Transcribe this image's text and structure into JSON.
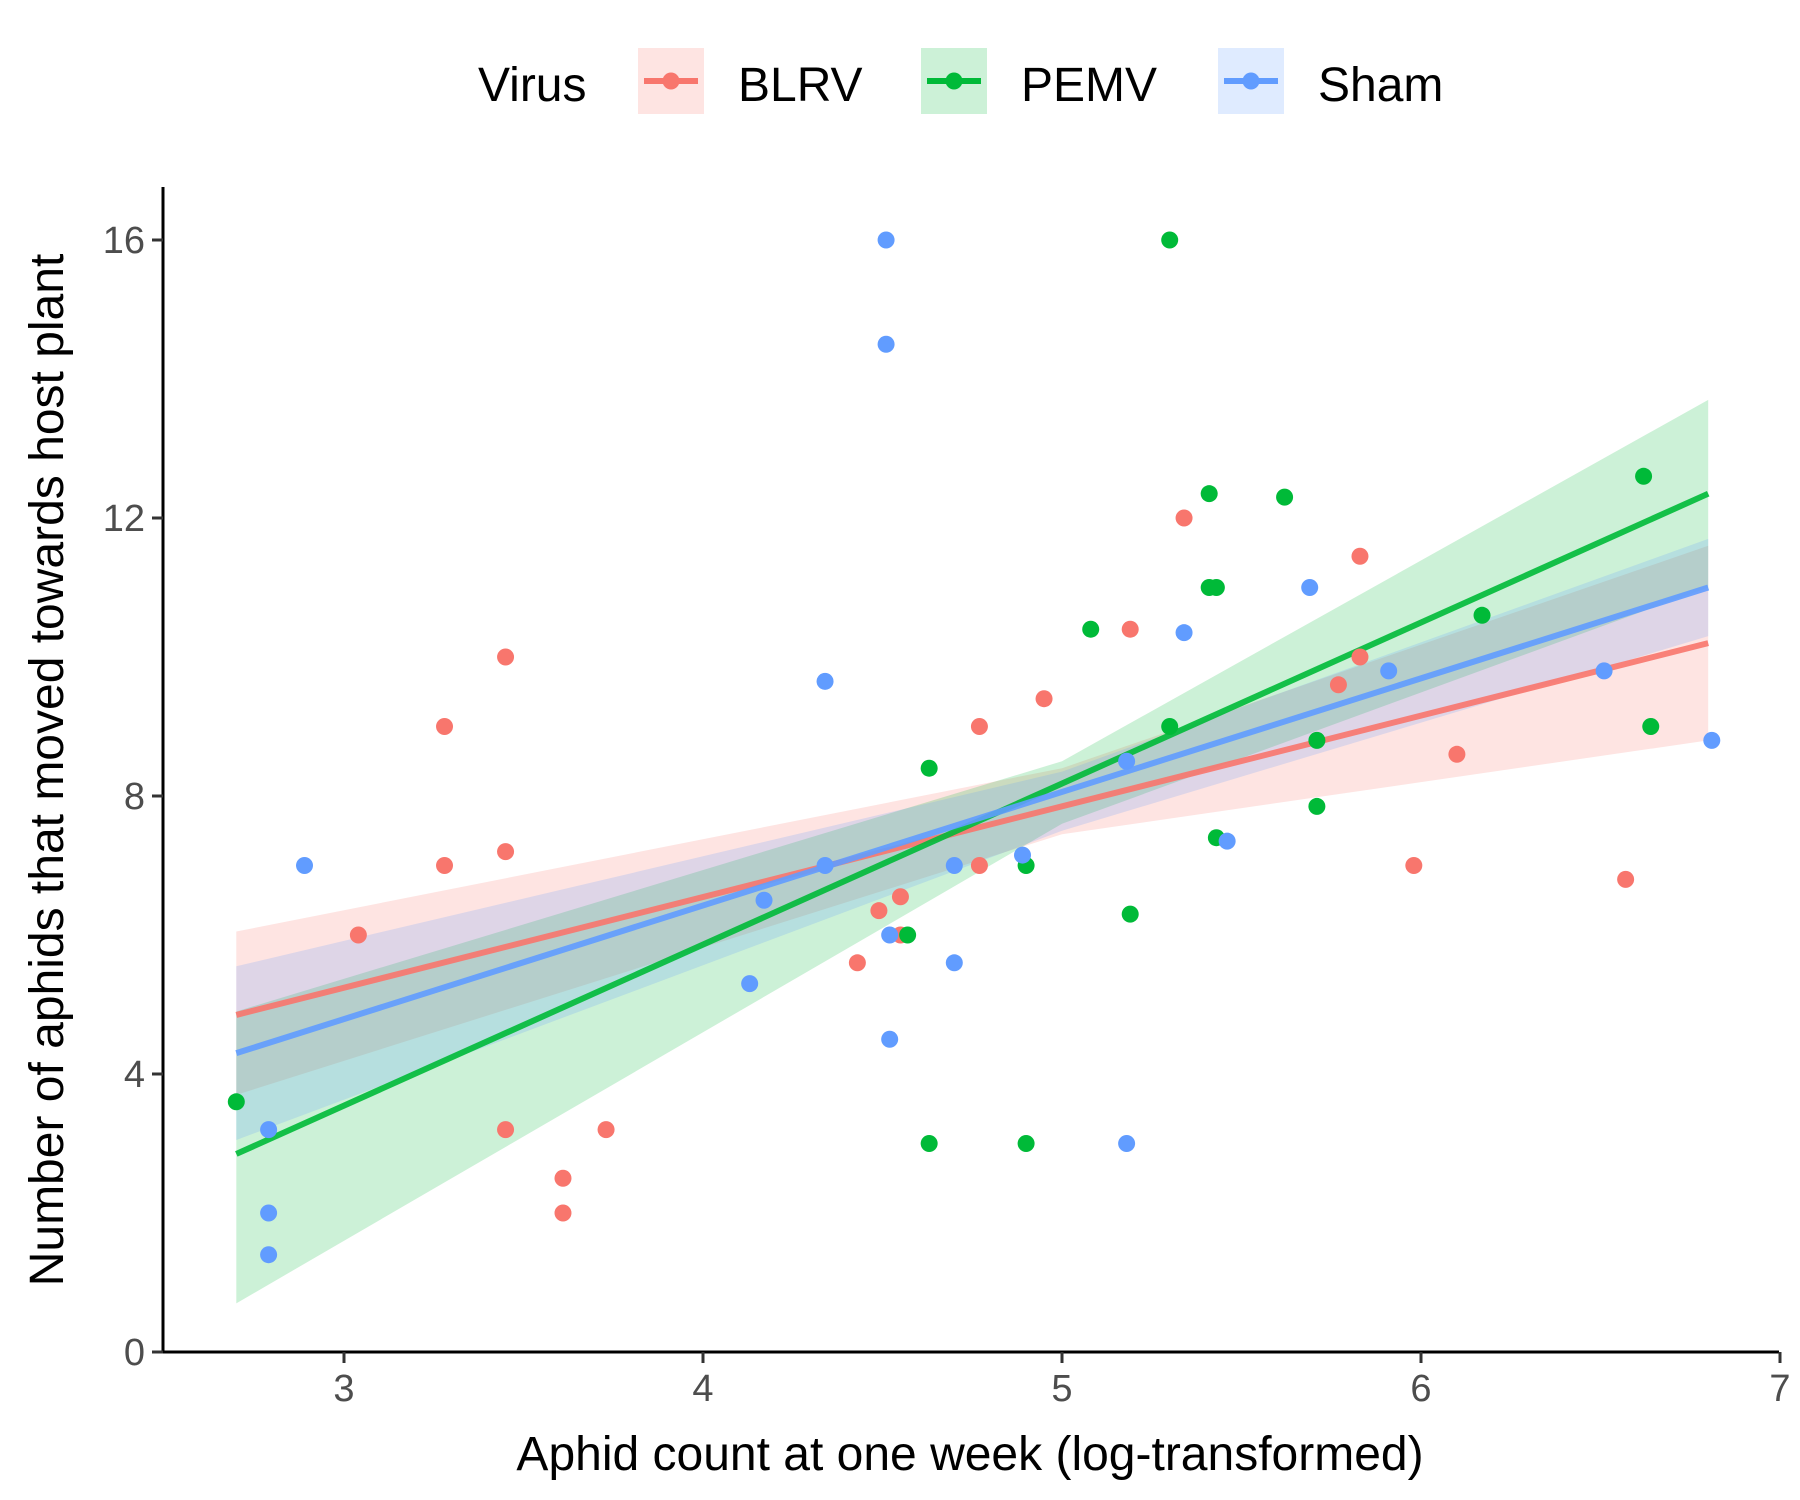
{
  "chart_data": {
    "type": "scatter",
    "xlabel": "Aphid count at one week (log-transformed)",
    "ylabel": "Number of aphids that moved towards host plant",
    "xlim": [
      2.5,
      7
    ],
    "ylim": [
      0,
      16.7
    ],
    "x_ticks": [
      3,
      4,
      5,
      6,
      7
    ],
    "y_ticks": [
      0,
      4,
      8,
      12,
      16
    ],
    "x_tick_labels": [
      "3",
      "4",
      "5",
      "6",
      "7"
    ],
    "y_tick_labels": [
      "0",
      "4",
      "8",
      "12",
      "16"
    ],
    "grid": false,
    "legend": {
      "title": "Virus",
      "position": "top"
    },
    "series": [
      {
        "name": "BLRV",
        "color": "#F8766D",
        "points": [
          [
            3.04,
            6.0
          ],
          [
            3.28,
            9.0
          ],
          [
            3.28,
            7.0
          ],
          [
            3.45,
            10.0
          ],
          [
            3.45,
            7.2
          ],
          [
            3.45,
            3.2
          ],
          [
            3.61,
            2.5
          ],
          [
            3.61,
            2.0
          ],
          [
            3.73,
            3.2
          ],
          [
            4.43,
            5.6
          ],
          [
            4.49,
            6.35
          ],
          [
            4.55,
            6.55
          ],
          [
            4.55,
            6.0
          ],
          [
            4.77,
            9.0
          ],
          [
            4.77,
            7.0
          ],
          [
            4.95,
            9.4
          ],
          [
            5.19,
            10.4
          ],
          [
            5.34,
            12.0
          ],
          [
            5.77,
            9.6
          ],
          [
            5.83,
            11.45
          ],
          [
            5.83,
            10.0
          ],
          [
            5.98,
            7.0
          ],
          [
            6.1,
            8.6
          ],
          [
            6.57,
            6.8
          ]
        ],
        "fit": [
          [
            2.7,
            4.85
          ],
          [
            6.8,
            10.2
          ]
        ],
        "ci_lower": [
          [
            2.7,
            3.7
          ],
          [
            5.0,
            7.45
          ],
          [
            6.8,
            8.8
          ]
        ],
        "ci_upper": [
          [
            2.7,
            6.05
          ],
          [
            5.0,
            8.4
          ],
          [
            6.8,
            11.6
          ]
        ]
      },
      {
        "name": "PEMV",
        "color": "#00BA38",
        "points": [
          [
            2.7,
            3.6
          ],
          [
            4.57,
            6.0
          ],
          [
            4.63,
            8.4
          ],
          [
            4.63,
            3.0
          ],
          [
            4.9,
            7.0
          ],
          [
            4.9,
            3.0
          ],
          [
            5.08,
            10.4
          ],
          [
            5.19,
            6.3
          ],
          [
            5.3,
            16.0
          ],
          [
            5.3,
            9.0
          ],
          [
            5.41,
            12.35
          ],
          [
            5.41,
            11.0
          ],
          [
            5.43,
            11.0
          ],
          [
            5.43,
            7.4
          ],
          [
            5.62,
            12.3
          ],
          [
            5.71,
            8.8
          ],
          [
            5.71,
            7.85
          ],
          [
            6.17,
            10.6
          ],
          [
            6.62,
            12.6
          ],
          [
            6.64,
            9.0
          ]
        ],
        "fit": [
          [
            2.7,
            2.85
          ],
          [
            6.8,
            12.35
          ]
        ],
        "ci_lower": [
          [
            2.7,
            0.7
          ],
          [
            5.0,
            7.6
          ],
          [
            6.8,
            11.0
          ]
        ],
        "ci_upper": [
          [
            2.7,
            4.9
          ],
          [
            5.0,
            8.5
          ],
          [
            6.8,
            13.7
          ]
        ]
      },
      {
        "name": "Sham",
        "color": "#619CFF",
        "points": [
          [
            2.79,
            3.2
          ],
          [
            2.79,
            2.0
          ],
          [
            2.79,
            1.4
          ],
          [
            2.89,
            7.0
          ],
          [
            4.13,
            5.3
          ],
          [
            4.17,
            6.5
          ],
          [
            4.34,
            9.65
          ],
          [
            4.34,
            7.0
          ],
          [
            4.51,
            16.0
          ],
          [
            4.51,
            14.5
          ],
          [
            4.52,
            6.0
          ],
          [
            4.52,
            4.5
          ],
          [
            4.7,
            7.0
          ],
          [
            4.7,
            5.6
          ],
          [
            4.89,
            7.15
          ],
          [
            5.18,
            8.5
          ],
          [
            5.18,
            3.0
          ],
          [
            5.34,
            10.35
          ],
          [
            5.46,
            7.35
          ],
          [
            5.69,
            11.0
          ],
          [
            5.91,
            9.8
          ],
          [
            6.51,
            9.8
          ],
          [
            6.81,
            8.8
          ]
        ],
        "fit": [
          [
            2.7,
            4.3
          ],
          [
            6.8,
            11.0
          ]
        ],
        "ci_lower": [
          [
            2.7,
            3.05
          ],
          [
            5.0,
            7.5
          ],
          [
            6.8,
            10.3
          ]
        ],
        "ci_upper": [
          [
            2.7,
            5.55
          ],
          [
            5.0,
            8.35
          ],
          [
            6.8,
            11.7
          ]
        ]
      }
    ]
  }
}
